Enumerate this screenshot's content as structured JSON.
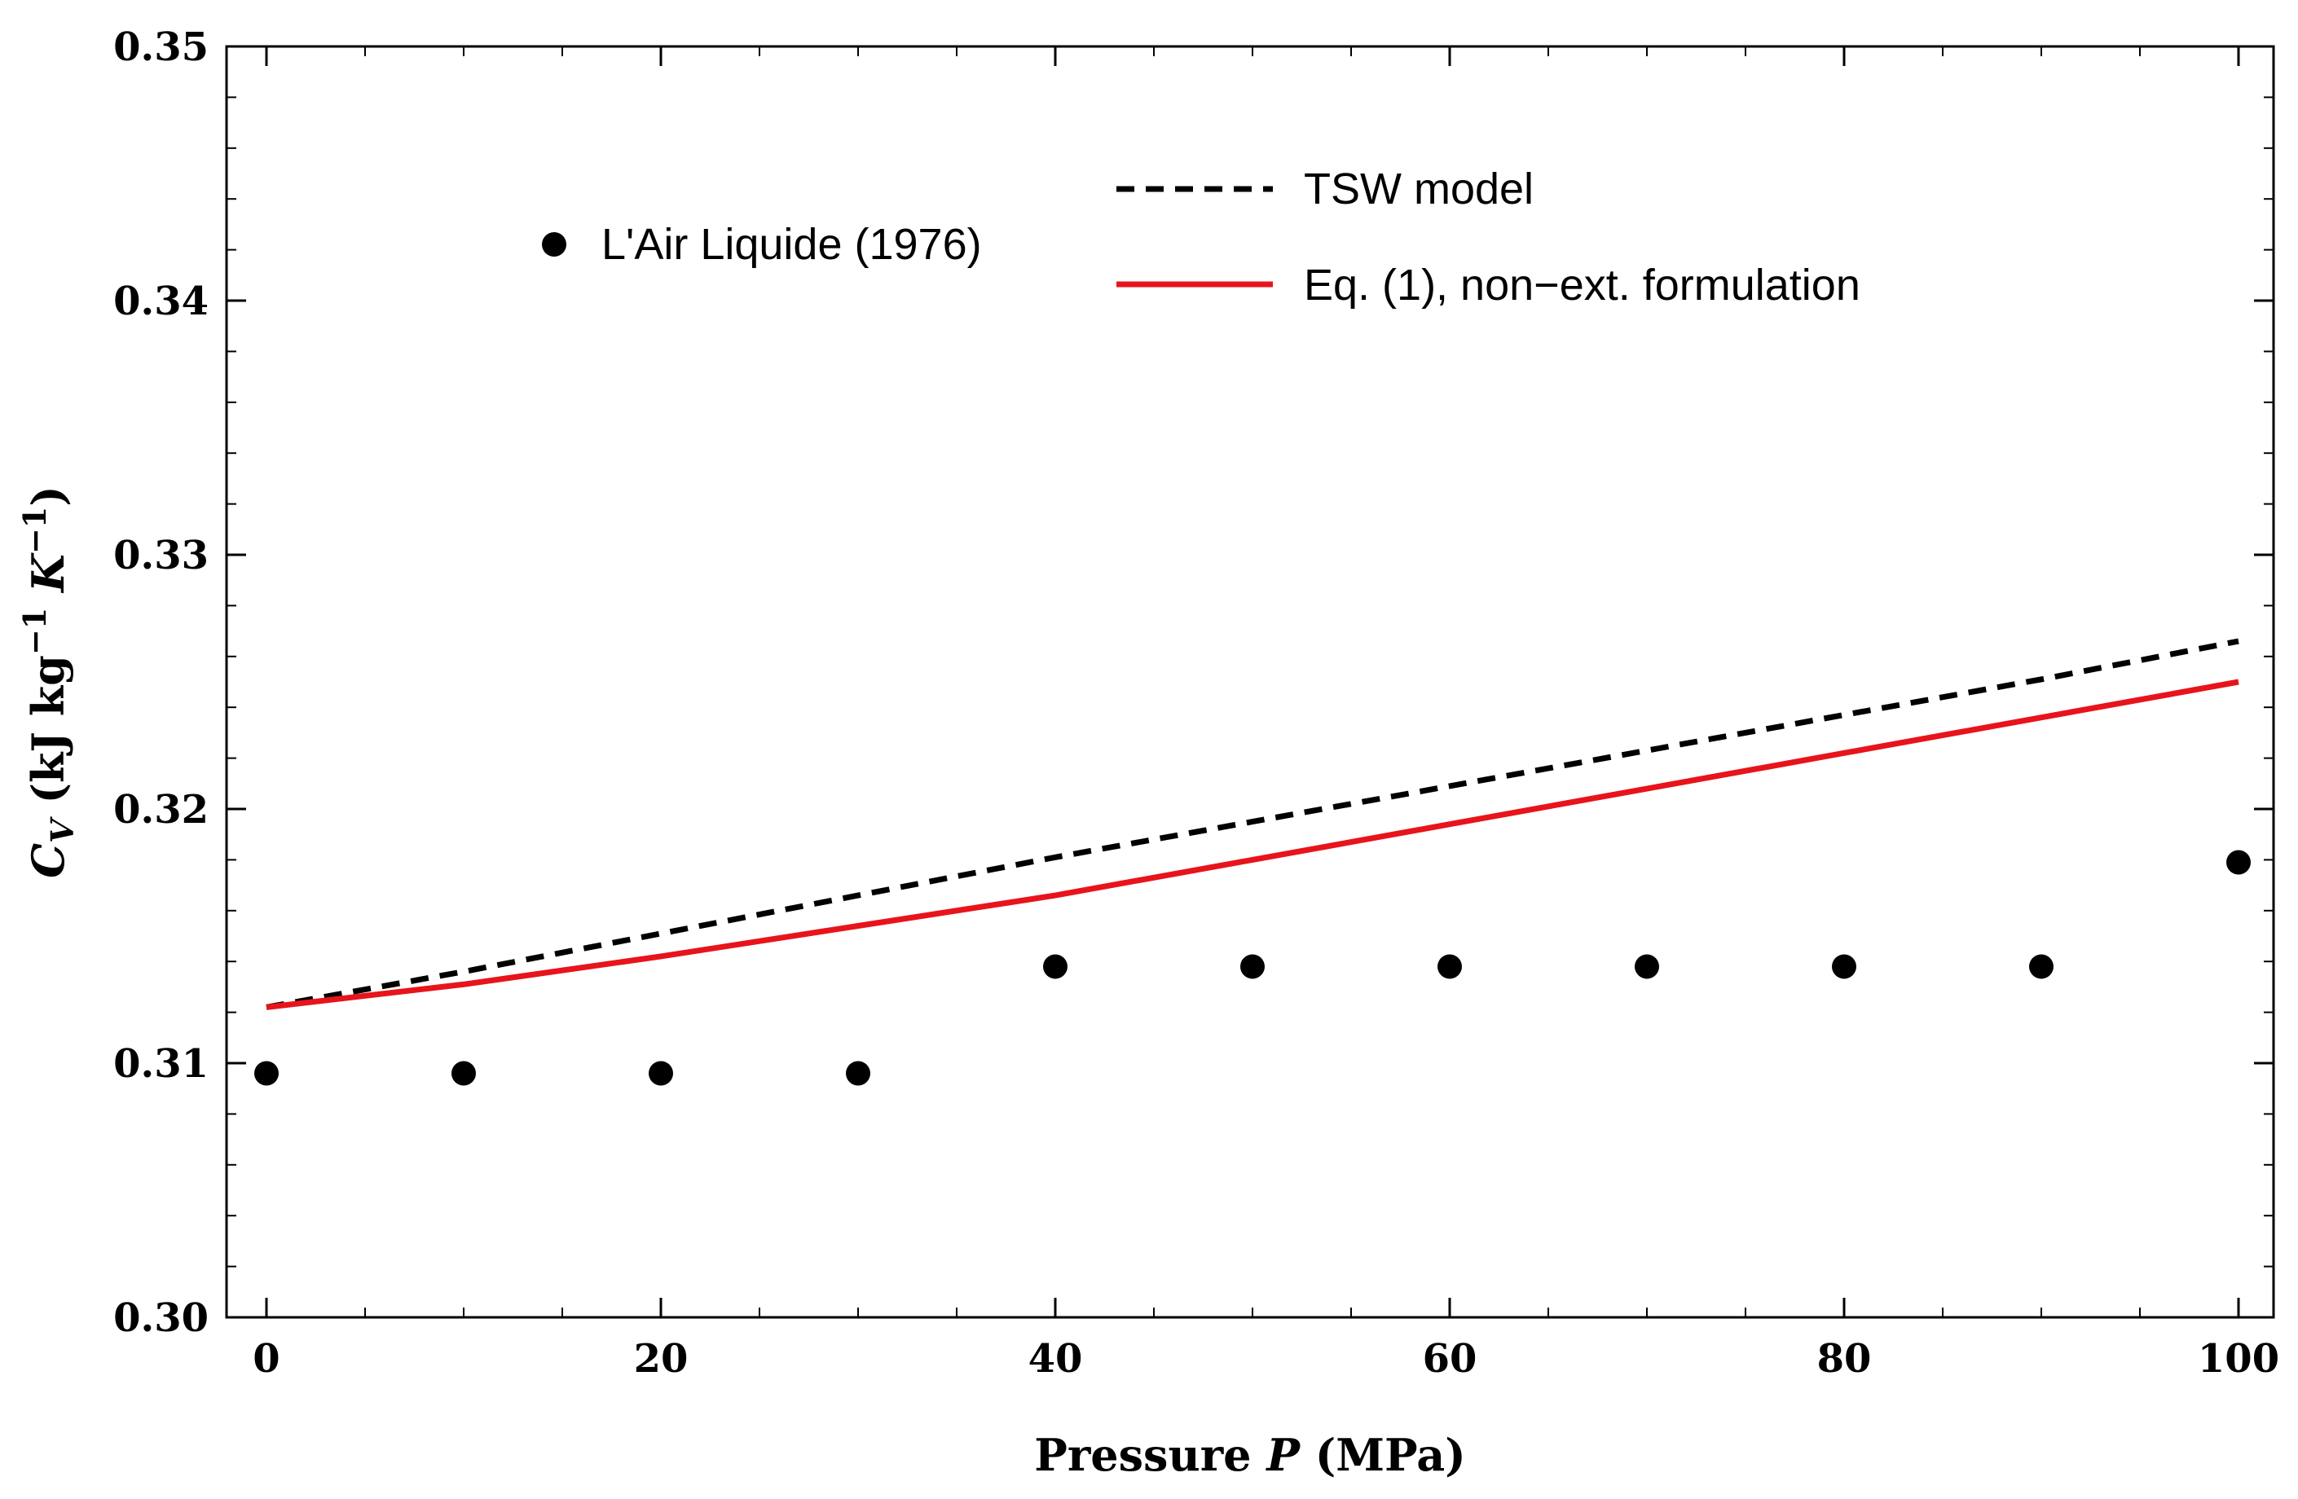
{
  "chart_data": {
    "type": "line",
    "title": "",
    "xlabel": {
      "text": "Pressure ",
      "italic": "P",
      "unit": " (MPa)"
    },
    "ylabel": {
      "base": "C",
      "sub": "V",
      "unit": " (kJ kg",
      "sup1": "−1",
      "k": " K",
      "sup2": "−1",
      "close": ")"
    },
    "xlim": [
      0,
      100
    ],
    "ylim": [
      0.3,
      0.35
    ],
    "xticks": [
      {
        "value": 0,
        "label": "0"
      },
      {
        "value": 20,
        "label": "20"
      },
      {
        "value": 40,
        "label": "40"
      },
      {
        "value": 60,
        "label": "60"
      },
      {
        "value": 80,
        "label": "80"
      },
      {
        "value": 100,
        "label": "100"
      }
    ],
    "yticks": [
      {
        "value": 0.3,
        "label": "0.30"
      },
      {
        "value": 0.31,
        "label": "0.31"
      },
      {
        "value": 0.32,
        "label": "0.32"
      },
      {
        "value": 0.33,
        "label": "0.33"
      },
      {
        "value": 0.34,
        "label": "0.34"
      },
      {
        "value": 0.35,
        "label": "0.35"
      }
    ],
    "x_minor_step": 5,
    "y_minor_step": 0.002,
    "series": [
      {
        "name": "L'Air Liquide (1976)",
        "kind": "scatter",
        "color": "#000000",
        "x": [
          0,
          10,
          20,
          30,
          40,
          50,
          60,
          70,
          80,
          90,
          100
        ],
        "y": [
          0.3096,
          0.3096,
          0.3096,
          0.3096,
          0.3138,
          0.3138,
          0.3138,
          0.3138,
          0.3138,
          0.3138,
          0.3179
        ]
      },
      {
        "name": "TSW model",
        "kind": "line",
        "dash": true,
        "color": "#000000",
        "x": [
          0,
          10,
          20,
          30,
          40,
          50,
          60,
          70,
          80,
          90,
          100
        ],
        "y": [
          0.3122,
          0.3136,
          0.3151,
          0.3166,
          0.3181,
          0.3195,
          0.3209,
          0.3223,
          0.3237,
          0.3251,
          0.3266
        ]
      },
      {
        "name": "Eq. (1), non−ext. formulation",
        "kind": "line",
        "dash": false,
        "color": "#e8141b",
        "x": [
          0,
          10,
          20,
          30,
          40,
          50,
          60,
          70,
          80,
          90,
          100
        ],
        "y": [
          0.3122,
          0.3131,
          0.3142,
          0.3154,
          0.3166,
          0.318,
          0.3194,
          0.3208,
          0.3222,
          0.3236,
          0.325
        ]
      }
    ],
    "legend": {
      "scatter_label": "L'Air Liquide (1976)",
      "tsw_label": "TSW model",
      "eq_label": "Eq. (1), non−ext. formulation"
    }
  }
}
